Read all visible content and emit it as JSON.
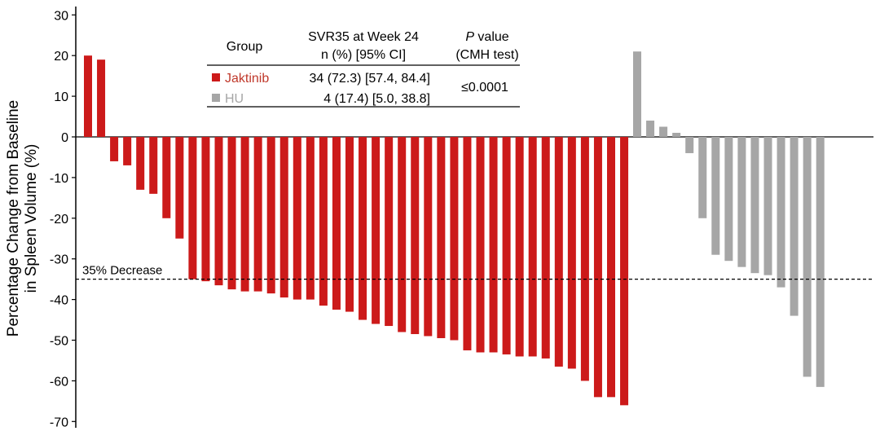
{
  "chart_data": {
    "type": "bar",
    "ylabel": "Percentage Change from Baseline\nin Spleen Volume (%)",
    "ylim": [
      -70,
      30
    ],
    "yticks": [
      30,
      20,
      10,
      0,
      -10,
      -20,
      -30,
      -40,
      -50,
      -60,
      -70
    ],
    "grid": false,
    "reference_line": {
      "value": -35,
      "label": "35% Decrease"
    },
    "series": [
      {
        "name": "Jaktinib",
        "color": "#cc1a1a",
        "values": [
          20,
          19,
          -6,
          -7,
          -13,
          -14,
          -20,
          -25,
          -35,
          -35.5,
          -36.5,
          -37.5,
          -38,
          -38,
          -38.5,
          -39.5,
          -40,
          -40,
          -41.5,
          -42.5,
          -43,
          -45,
          -46,
          -46.5,
          -48,
          -48.5,
          -49,
          -49.5,
          -50,
          -52.5,
          -53,
          -53,
          -53.5,
          -54,
          -54,
          -54.5,
          -56.5,
          -57,
          -60,
          -64,
          -64,
          -66
        ]
      },
      {
        "name": "HU",
        "color": "#a6a6a6",
        "values": [
          21,
          4,
          2.5,
          1,
          -4,
          -20,
          -29,
          -30.5,
          -32,
          -33.5,
          -34,
          -37,
          -44,
          -59,
          -61.5
        ]
      }
    ],
    "table": {
      "headers": [
        "Group",
        "SVR35 at Week 24\nn (%) [95% CI]",
        "P value\n(CMH test)"
      ],
      "header_col2_line1": "SVR35 at Week 24",
      "header_col2_line2": "n (%) [95% CI]",
      "header_col3_italic": "P",
      "header_col3_line1_rest": " value",
      "header_col3_line2": "(CMH test)",
      "rows": [
        {
          "group": "Jaktinib",
          "svr35": "34 (72.3) [57.4, 84.4]"
        },
        {
          "group": "HU",
          "svr35": "4 (17.4) [5.0, 38.8]"
        }
      ],
      "p_value": "≤0.0001"
    }
  }
}
